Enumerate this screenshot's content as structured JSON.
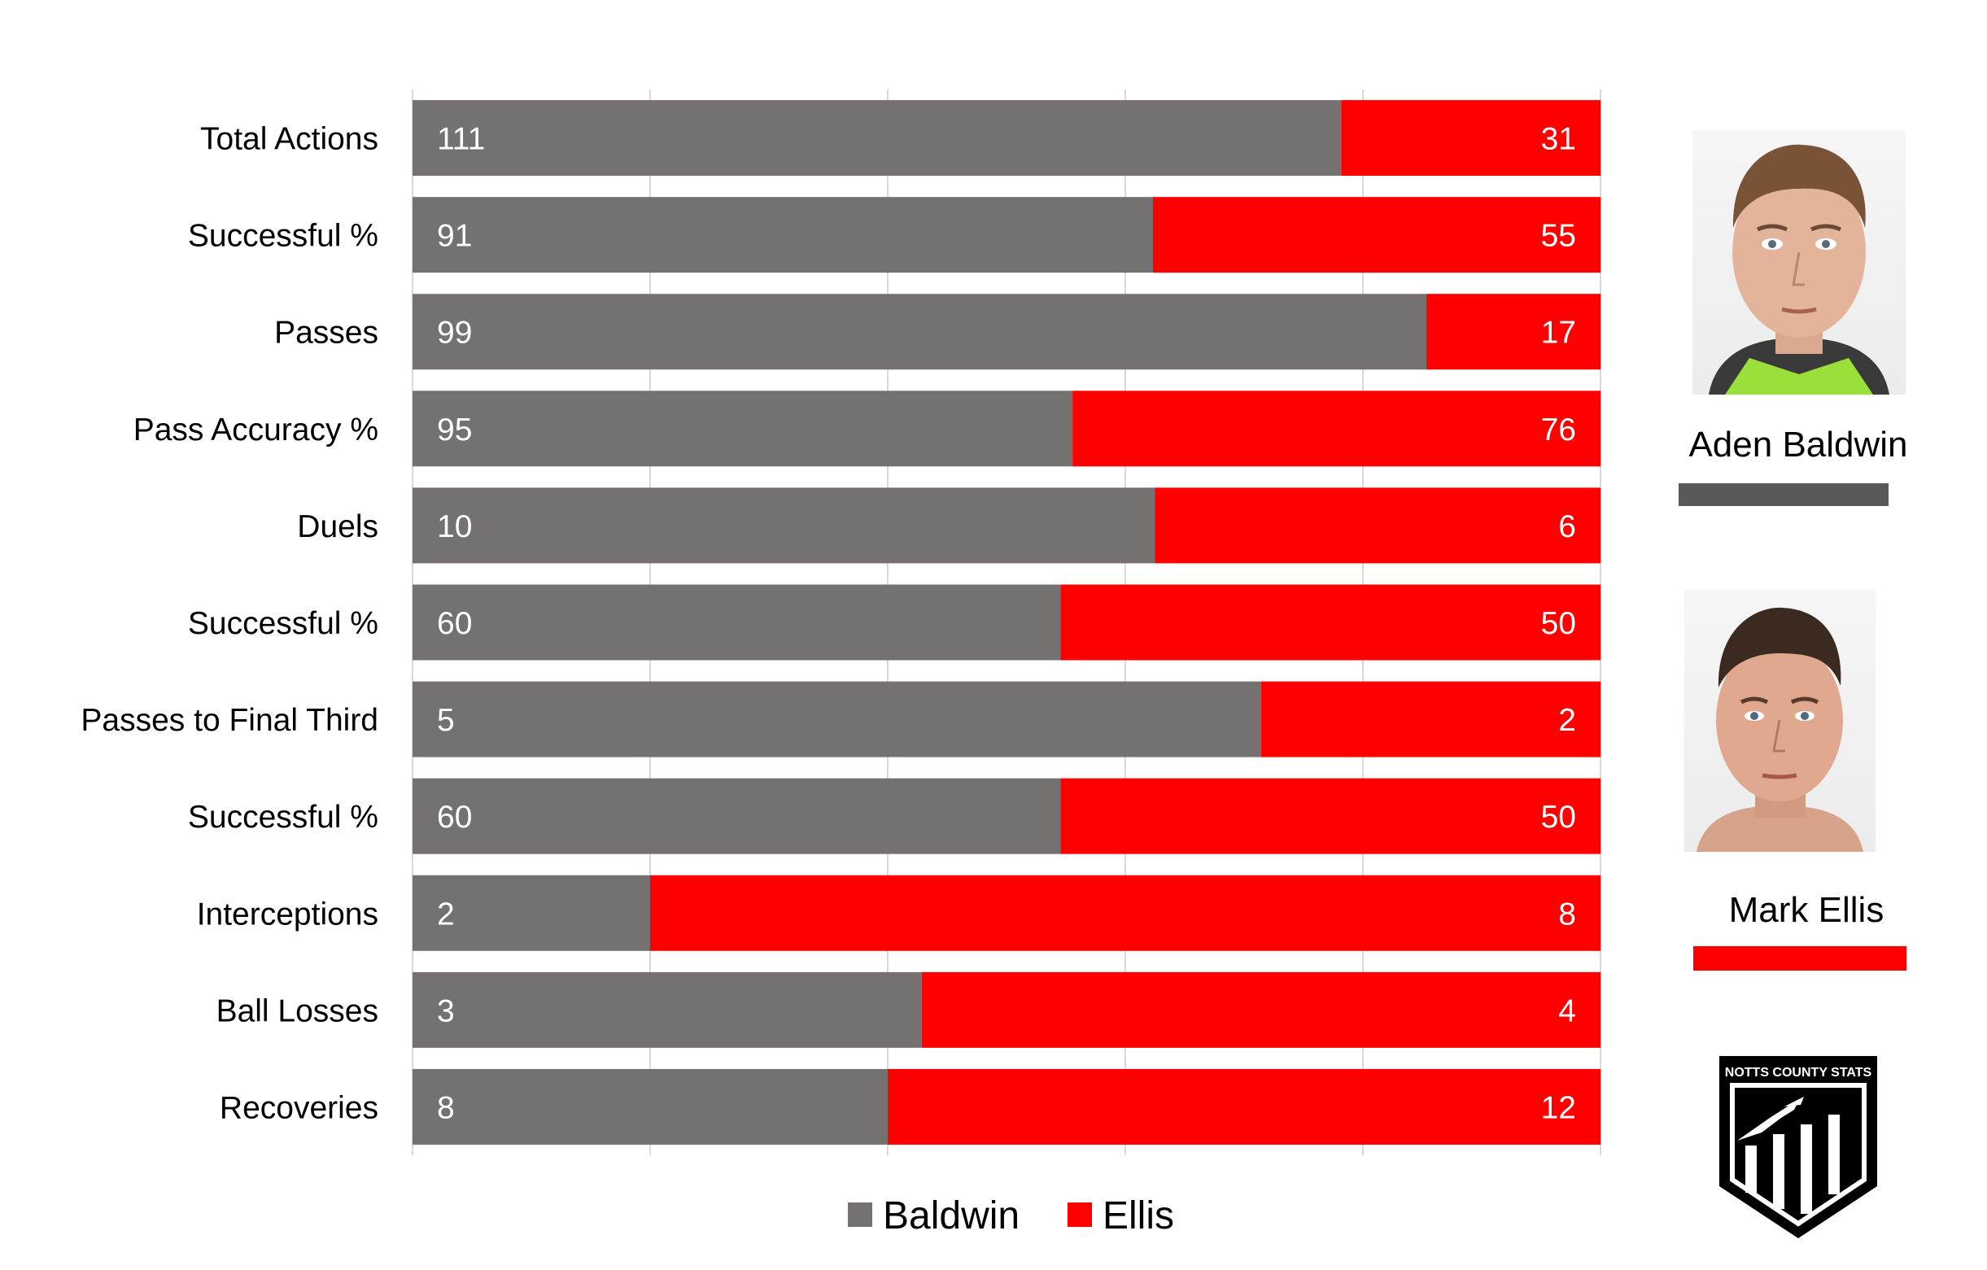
{
  "chart_data": {
    "type": "bar",
    "stacking": "100% stacked horizontal",
    "categories": [
      "Total Actions",
      "Successful %",
      "Passes",
      "Pass Accuracy %",
      "Duels",
      "Successful %",
      "Passes to Final Third",
      "Successful %",
      "Interceptions",
      "Ball Losses",
      "Recoveries"
    ],
    "series": [
      {
        "name": "Baldwin",
        "color": "#767171",
        "values": [
          111,
          91,
          99,
          95,
          10,
          60,
          5,
          60,
          2,
          3,
          8
        ]
      },
      {
        "name": "Ellis",
        "color": "#ff0000",
        "values": [
          31,
          55,
          17,
          76,
          6,
          50,
          2,
          50,
          8,
          4,
          12
        ]
      }
    ],
    "xlim": [
      0,
      1
    ],
    "grid": true,
    "legend": "bottom"
  },
  "players": [
    {
      "name": "Aden Baldwin",
      "color": "#595959"
    },
    {
      "name": "Mark Ellis",
      "color": "#ff0000"
    }
  ],
  "logo": {
    "text": "NOTTS COUNTY STATS",
    "icon": "magpie-shield-icon"
  }
}
